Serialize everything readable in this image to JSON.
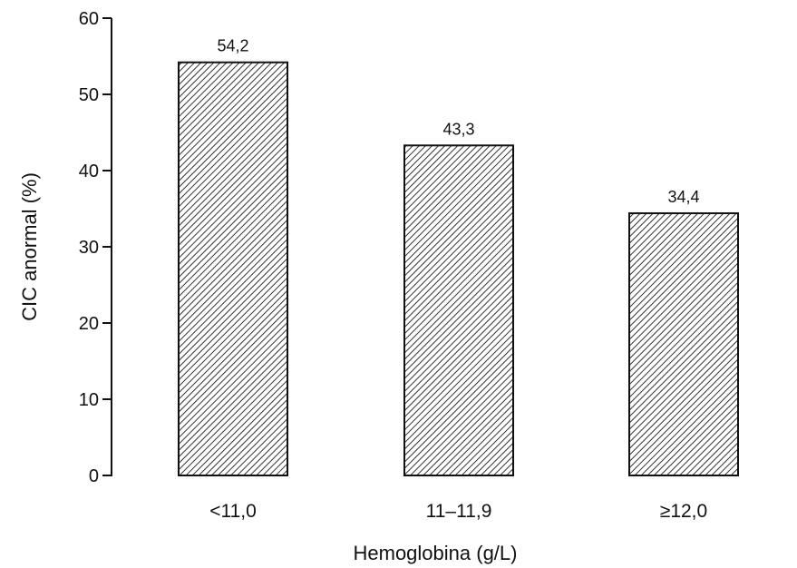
{
  "chart_data": {
    "type": "bar",
    "categories": [
      "<11,0",
      "11–11,9",
      "≥12,0"
    ],
    "values": [
      54.2,
      43.3,
      34.4
    ],
    "data_labels": [
      "54,2",
      "43,3",
      "34,4"
    ],
    "xlabel": "Hemoglobina (g/L)",
    "ylabel": "CIC anormal (%)",
    "ylim": [
      0,
      60
    ],
    "yticks": [
      0,
      10,
      20,
      30,
      40,
      50,
      60
    ],
    "ytick_labels": [
      "0",
      "10",
      "20",
      "30",
      "40",
      "50",
      "60"
    ],
    "grid": false,
    "legend": "none",
    "bar_fill": "diagonal-hatch",
    "colors": {
      "bar_stroke": "#111111",
      "hatch": "#333333",
      "axis": "#111111"
    }
  }
}
